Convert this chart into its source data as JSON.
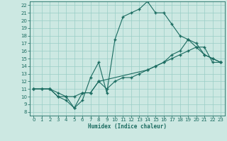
{
  "xlabel": "Humidex (Indice chaleur)",
  "bg_color": "#cce8e2",
  "grid_color": "#99cdc6",
  "line_color": "#1a6b60",
  "xlim": [
    -0.5,
    23.5
  ],
  "ylim": [
    7.5,
    22.5
  ],
  "xticks": [
    0,
    1,
    2,
    3,
    4,
    5,
    6,
    7,
    8,
    9,
    10,
    11,
    12,
    13,
    14,
    15,
    16,
    17,
    18,
    19,
    20,
    21,
    22,
    23
  ],
  "yticks": [
    8,
    9,
    10,
    11,
    12,
    13,
    14,
    15,
    16,
    17,
    18,
    19,
    20,
    21,
    22
  ],
  "line1_x": [
    0,
    1,
    2,
    3,
    4,
    5,
    6,
    7,
    8,
    9,
    10,
    11,
    12,
    13,
    14,
    15,
    16,
    17,
    18,
    19,
    20,
    21,
    22,
    23
  ],
  "line1_y": [
    11,
    11,
    11,
    10,
    10,
    8.5,
    9.5,
    12.5,
    14.5,
    10.5,
    17.5,
    20.5,
    21.0,
    21.5,
    22.5,
    21.0,
    21.0,
    19.5,
    18.0,
    17.5,
    16.5,
    15.5,
    15.0,
    14.5
  ],
  "line2_x": [
    0,
    2,
    3,
    4,
    5,
    6,
    7,
    8,
    14,
    15,
    16,
    17,
    18,
    19,
    20,
    21,
    22,
    23
  ],
  "line2_y": [
    11,
    11,
    10,
    9.5,
    8.5,
    10.5,
    10.5,
    12.0,
    13.5,
    14.0,
    14.5,
    15.5,
    16.0,
    17.5,
    17.0,
    15.5,
    15.0,
    14.5
  ],
  "line3_x": [
    0,
    1,
    2,
    3,
    4,
    5,
    6,
    7,
    8,
    9,
    10,
    11,
    12,
    13,
    14,
    15,
    16,
    17,
    18,
    19,
    20,
    21,
    22,
    23
  ],
  "line3_y": [
    11,
    11,
    11,
    10.5,
    10.0,
    10.0,
    10.5,
    10.5,
    12.0,
    11.0,
    12.0,
    12.5,
    12.5,
    13.0,
    13.5,
    14.0,
    14.5,
    15.0,
    15.5,
    16.0,
    16.5,
    16.5,
    14.5,
    14.5
  ]
}
